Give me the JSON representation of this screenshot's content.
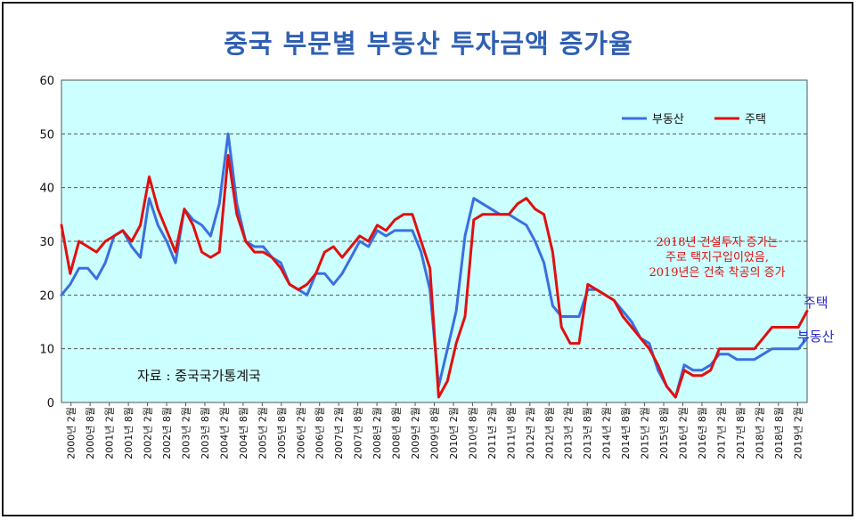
{
  "chart_data": {
    "type": "line",
    "title": "중국 부문별 부동산 투자금액 증가율",
    "xlabel": "",
    "ylabel": "",
    "ylim": [
      0,
      60
    ],
    "yticks": [
      0,
      10,
      20,
      30,
      40,
      50,
      60
    ],
    "grid": true,
    "legend_position": "top-right",
    "x_tick_labels": [
      "2000년 2월",
      "2000년 8월",
      "2001년 2월",
      "2001년 8월",
      "2002년 2월",
      "2002년 8월",
      "2003년 2월",
      "2003년 8월",
      "2004년 2월",
      "2004년 8월",
      "2005년 2월",
      "2005년 8월",
      "2006년 2월",
      "2006년 8월",
      "2007년 2월",
      "2007년 8월",
      "2008년 2월",
      "2008년 8월",
      "2009년 2월",
      "2009년 8월",
      "2010년 2월",
      "2010년 8월",
      "2011년 2월",
      "2011년 8월",
      "2012년 2월",
      "2012년 8월",
      "2013년 2월",
      "2013년 8월",
      "2014년 2월",
      "2014년 8월",
      "2015년 2월",
      "2015년 8월",
      "2016년 2월",
      "2016년 8월",
      "2017년 2월",
      "2017년 8월",
      "2018년 2월",
      "2018년 8월",
      "2019년 2월"
    ],
    "series": [
      {
        "name": "부동산",
        "color": "#3b6fe0",
        "end_label": "부동산",
        "values": [
          20,
          22,
          25,
          25,
          23,
          26,
          31,
          32,
          29,
          27,
          38,
          33,
          30,
          26,
          36,
          34,
          33,
          31,
          37,
          50,
          37,
          30,
          29,
          29,
          27,
          26,
          22,
          21,
          20,
          24,
          24,
          22,
          24,
          27,
          30,
          29,
          32,
          31,
          32,
          32,
          32,
          28,
          21,
          3,
          10,
          17,
          31,
          38,
          37,
          36,
          35,
          35,
          34,
          33,
          30,
          26,
          18,
          16,
          16,
          16,
          21,
          21,
          20,
          19,
          17,
          15,
          12,
          11,
          6,
          3,
          1,
          7,
          6,
          6,
          7,
          9,
          9,
          8,
          8,
          8,
          9,
          10,
          10,
          10,
          10,
          12
        ]
      },
      {
        "name": "주택",
        "color": "#e01010",
        "end_label": "주택",
        "values": [
          33,
          24,
          30,
          29,
          28,
          30,
          31,
          32,
          30,
          33,
          42,
          36,
          32,
          28,
          36,
          33,
          28,
          27,
          28,
          46,
          35,
          30,
          28,
          28,
          27,
          25,
          22,
          21,
          22,
          24,
          28,
          29,
          27,
          29,
          31,
          30,
          33,
          32,
          34,
          35,
          35,
          30,
          25,
          1,
          4,
          11,
          16,
          34,
          35,
          35,
          35,
          35,
          37,
          38,
          36,
          35,
          28,
          14,
          11,
          11,
          22,
          21,
          20,
          19,
          16,
          14,
          12,
          10,
          7,
          3,
          1,
          6,
          5,
          5,
          6,
          10,
          10,
          10,
          10,
          10,
          12,
          14,
          14,
          14,
          14,
          17
        ]
      }
    ],
    "annotations": [
      {
        "lines": [
          "2018년 건설투자 증가는",
          "주로 택지구입이었음,",
          "2019년은 건축 착공의 증가"
        ],
        "color": "#e01010"
      },
      {
        "lines": [
          "자료 : 중국국가통계국"
        ],
        "color": "#111111"
      }
    ]
  }
}
